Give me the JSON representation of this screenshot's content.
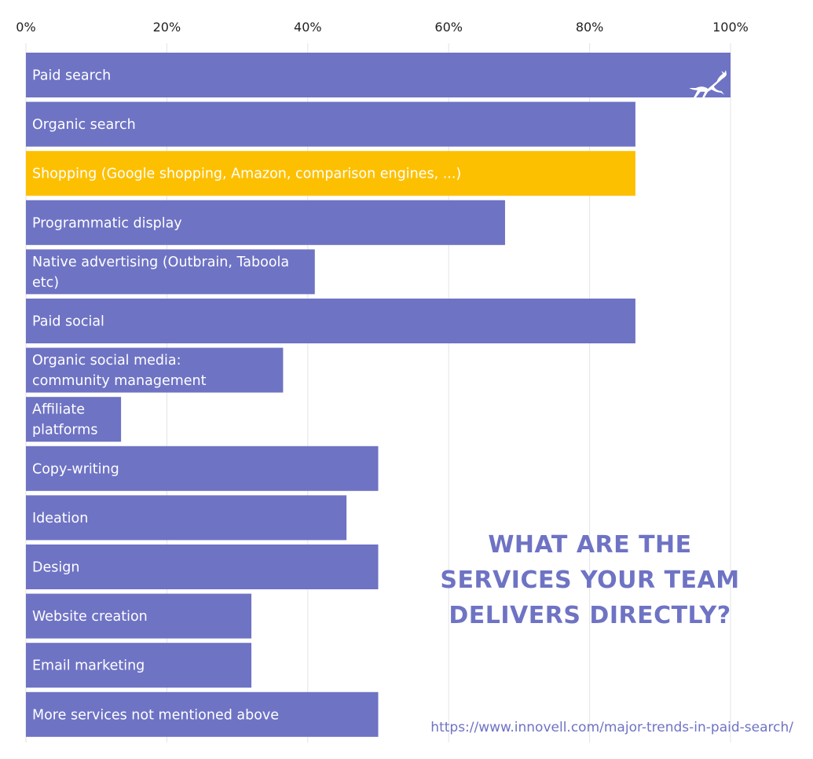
{
  "chart_data": {
    "type": "bar",
    "orientation": "horizontal",
    "title_lines": [
      "WHAT ARE THE",
      "SERVICES YOUR TEAM",
      "DELIVERS DIRECTLY?"
    ],
    "source": "https://www.innovell.com/major-trends-in-paid-search/",
    "x_ticks": [
      "0%",
      "20%",
      "40%",
      "60%",
      "80%",
      "100%"
    ],
    "xlim": [
      0,
      100
    ],
    "grid": true,
    "highlight_color": "#fdc000",
    "bar_color": "#6e73c4",
    "logo": "leaping-deer-icon",
    "categories": [
      {
        "label": [
          "Paid search"
        ],
        "value": 100,
        "highlight": false
      },
      {
        "label": [
          "Organic search"
        ],
        "value": 86.5,
        "highlight": false
      },
      {
        "label": [
          "Shopping (Google shopping, Amazon, comparison engines, ...)"
        ],
        "value": 86.5,
        "highlight": true
      },
      {
        "label": [
          "Programmatic display"
        ],
        "value": 68,
        "highlight": false
      },
      {
        "label": [
          "Native advertising (Outbrain, Taboola",
          "etc)"
        ],
        "value": 41,
        "highlight": false
      },
      {
        "label": [
          "Paid social"
        ],
        "value": 86.5,
        "highlight": false
      },
      {
        "label": [
          "Organic social media:",
          "community management"
        ],
        "value": 36.5,
        "highlight": false
      },
      {
        "label": [
          "Affiliate",
          "platforms"
        ],
        "value": 13.5,
        "highlight": false
      },
      {
        "label": [
          "Copy-writing"
        ],
        "value": 50,
        "highlight": false
      },
      {
        "label": [
          "Ideation"
        ],
        "value": 45.5,
        "highlight": false
      },
      {
        "label": [
          "Design"
        ],
        "value": 50,
        "highlight": false
      },
      {
        "label": [
          "Website creation"
        ],
        "value": 32,
        "highlight": false
      },
      {
        "label": [
          "Email marketing"
        ],
        "value": 32,
        "highlight": false
      },
      {
        "label": [
          "More services not mentioned above"
        ],
        "value": 50,
        "highlight": false
      }
    ]
  }
}
